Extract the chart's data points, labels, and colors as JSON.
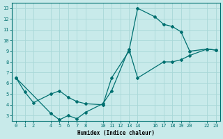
{
  "title": "",
  "xlabel": "Humidex (Indice chaleur)",
  "bg_color": "#c8eaea",
  "line_color": "#007070",
  "grid_color": "#a8d8d8",
  "series": [
    {
      "x": [
        0,
        1,
        2,
        4,
        5,
        6,
        7,
        8,
        10,
        11,
        13,
        14,
        16,
        17,
        18,
        19,
        20,
        22,
        23
      ],
      "y": [
        6.5,
        5.2,
        4.2,
        5.0,
        5.3,
        4.7,
        4.3,
        4.1,
        4.0,
        6.5,
        9.0,
        13.0,
        12.2,
        11.5,
        11.3,
        10.8,
        9.0,
        9.2,
        9.1
      ]
    },
    {
      "x": [
        0,
        4,
        5,
        6,
        7,
        8,
        10,
        11,
        13,
        14,
        17,
        18,
        19,
        20,
        22,
        23
      ],
      "y": [
        6.5,
        3.2,
        2.6,
        3.0,
        2.7,
        3.3,
        4.1,
        5.3,
        9.2,
        6.5,
        8.0,
        8.0,
        8.2,
        8.6,
        9.2,
        9.1
      ]
    }
  ],
  "xlim": [
    -0.5,
    23.5
  ],
  "ylim": [
    2.5,
    13.5
  ],
  "xticks": [
    0,
    1,
    2,
    4,
    5,
    6,
    7,
    8,
    10,
    11,
    12,
    13,
    14,
    16,
    17,
    18,
    19,
    20,
    22,
    23
  ],
  "yticks": [
    3,
    4,
    5,
    6,
    7,
    8,
    9,
    10,
    11,
    12,
    13
  ],
  "xticklabels": [
    "0",
    "1",
    "2",
    "4",
    "5",
    "6",
    "7",
    "8",
    "10",
    "11",
    "12",
    "13",
    "14",
    "16",
    "17",
    "18",
    "19",
    "20",
    "22",
    "23"
  ]
}
